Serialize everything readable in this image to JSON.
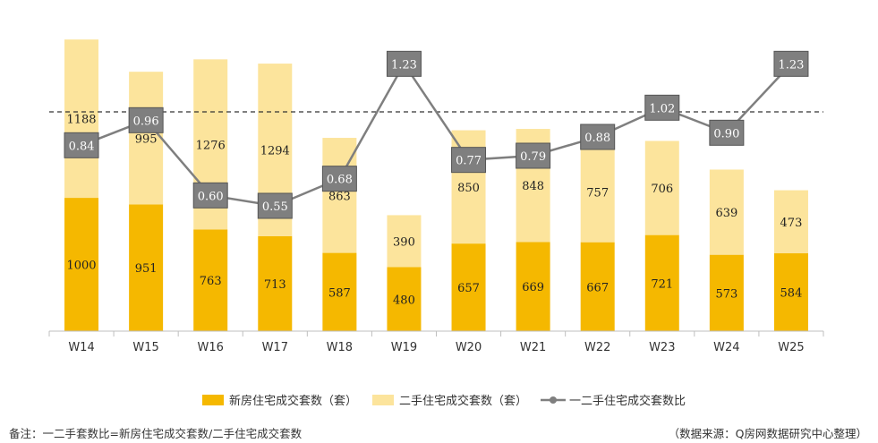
{
  "chart_data": {
    "type": "bar",
    "stacked": true,
    "categories": [
      "W14",
      "W15",
      "W16",
      "W17",
      "W18",
      "W19",
      "W20",
      "W21",
      "W22",
      "W23",
      "W24",
      "W25"
    ],
    "series": [
      {
        "name": "新房住宅成交套数（套）",
        "kind": "bar",
        "color": "#F5B800",
        "values": [
          1000,
          951,
          763,
          713,
          587,
          480,
          657,
          669,
          667,
          721,
          573,
          584
        ]
      },
      {
        "name": "二手住宅成交套数（套）",
        "kind": "bar",
        "color": "#FCE49C",
        "values": [
          1188,
          995,
          1276,
          1294,
          863,
          390,
          850,
          848,
          757,
          706,
          639,
          473
        ]
      },
      {
        "name": "一二手住宅成交套数比",
        "kind": "line",
        "color": "#7F7F7F",
        "values": [
          0.84,
          0.96,
          0.6,
          0.55,
          0.68,
          1.23,
          0.77,
          0.79,
          0.88,
          1.02,
          0.9,
          1.23
        ],
        "labels": [
          "0.84",
          "0.96",
          "0.60",
          "0.55",
          "0.68",
          "1.23",
          "0.77",
          "0.79",
          "0.88",
          "1.02",
          "0.90",
          "1.23"
        ]
      }
    ],
    "reference_line": {
      "value": 1.0,
      "style": "dashed",
      "axis": "ratio"
    },
    "bar_ylim": [
      0,
      2350
    ],
    "ratio_ylim": [
      -0.05,
      1.45
    ],
    "legend_position": "bottom",
    "gridlines": false
  },
  "footer": {
    "note": "备注：一二手套数比=新房住宅成交套数/二手住宅成交套数",
    "source": "（数据来源：Q房网数据研究中心整理）"
  }
}
